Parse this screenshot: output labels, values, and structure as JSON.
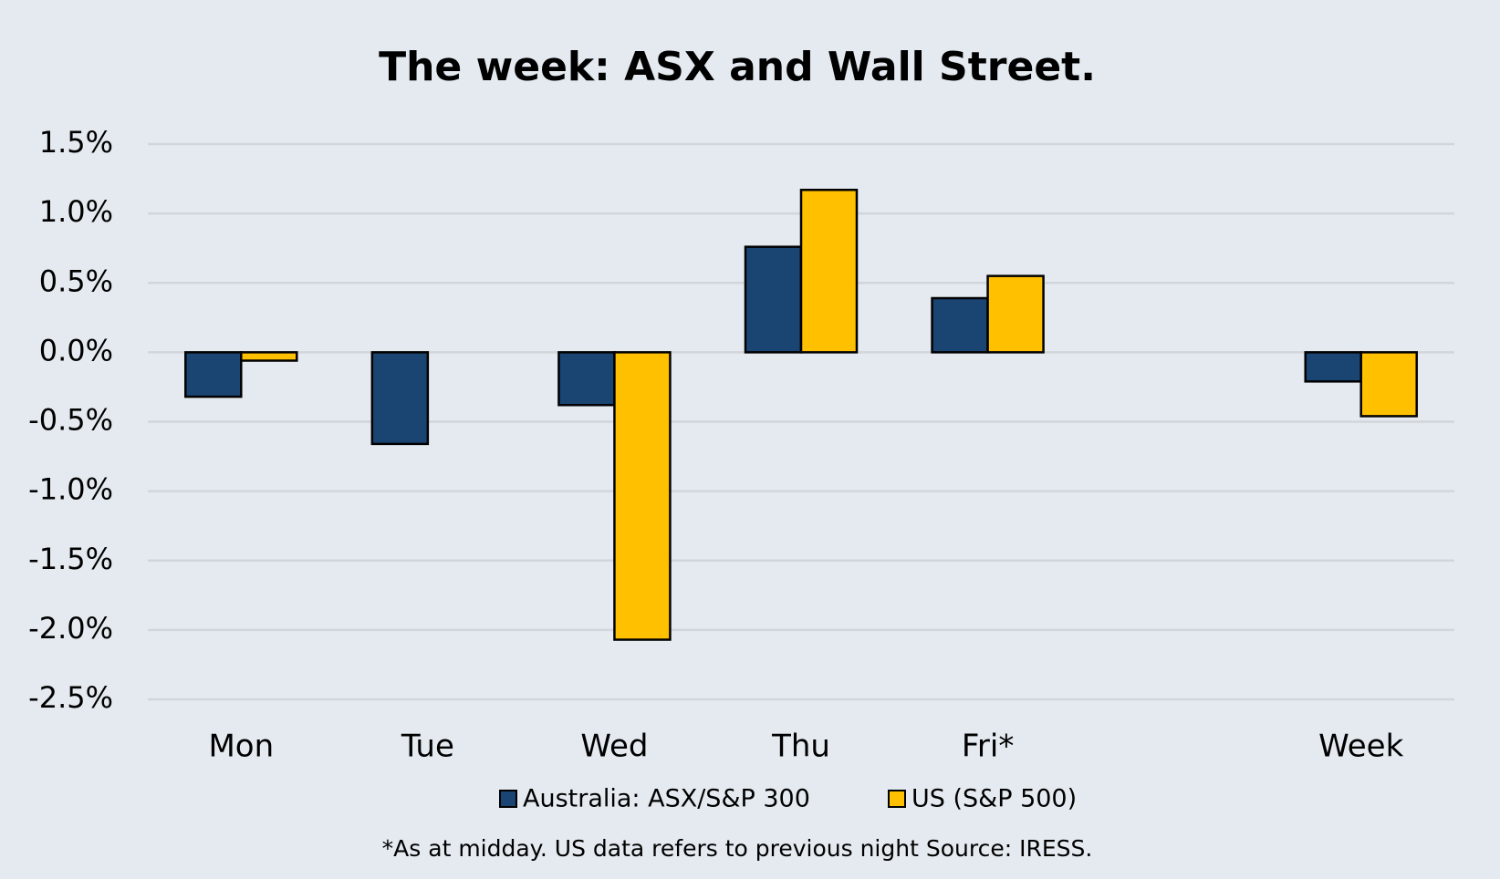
{
  "chart_data": {
    "type": "bar",
    "title": "The week:  ASX and Wall Street.",
    "categories": [
      "Mon",
      "Tue",
      "Wed",
      "Thu",
      "Fri*",
      null,
      "Week"
    ],
    "series": [
      {
        "name": "Australia: ASX/S&P 300",
        "color": "#1a4572",
        "values": [
          -0.32,
          -0.66,
          -0.38,
          0.76,
          0.39,
          null,
          -0.21
        ]
      },
      {
        "name": "US (S&P 500)",
        "color": "#ffc000",
        "values": [
          -0.06,
          null,
          -2.07,
          1.17,
          0.55,
          null,
          -0.46
        ]
      }
    ],
    "ylim": [
      -2.5,
      1.5
    ],
    "yticks": [
      {
        "value": 1.5,
        "label": "1.5%"
      },
      {
        "value": 1.0,
        "label": "1.0%"
      },
      {
        "value": 0.5,
        "label": "0.5%"
      },
      {
        "value": 0,
        "label": "0.0%"
      },
      {
        "value": -0.5,
        "label": "-0.5%"
      },
      {
        "value": -1.0,
        "label": "-1.0%"
      },
      {
        "value": -1.5,
        "label": "-1.5%"
      },
      {
        "value": -2.0,
        "label": "-2.0%"
      },
      {
        "value": -2.5,
        "label": "-2.5%"
      }
    ],
    "grid": true,
    "note": "*As at midday. US data refers to previous night  Source:  IRESS."
  }
}
